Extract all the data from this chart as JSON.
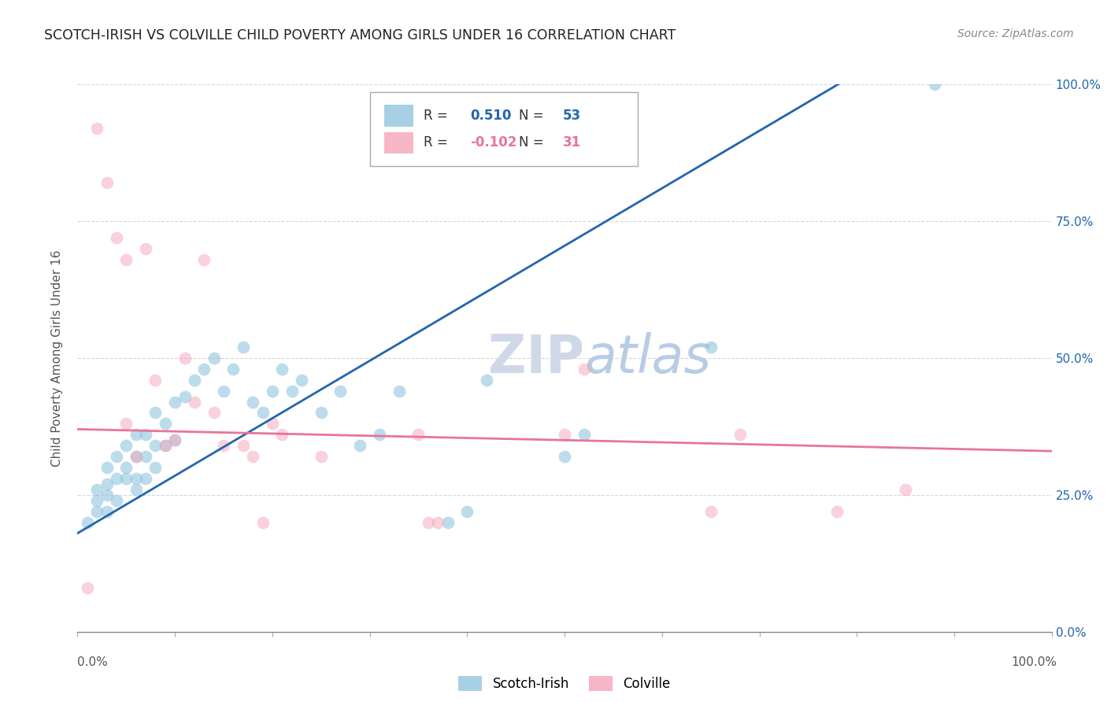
{
  "title": "SCOTCH-IRISH VS COLVILLE CHILD POVERTY AMONG GIRLS UNDER 16 CORRELATION CHART",
  "source": "Source: ZipAtlas.com",
  "ylabel": "Child Poverty Among Girls Under 16",
  "xlim": [
    0.0,
    1.0
  ],
  "ylim": [
    0.0,
    1.0
  ],
  "yticks": [
    0.0,
    0.25,
    0.5,
    0.75,
    1.0
  ],
  "yticklabels_left": [
    "",
    "",
    "",
    "",
    ""
  ],
  "yticklabels_right": [
    "0.0%",
    "25.0%",
    "50.0%",
    "75.0%",
    "100.0%"
  ],
  "blue_R": 0.51,
  "blue_N": 53,
  "pink_R": -0.102,
  "pink_N": 31,
  "blue_color": "#92c5de",
  "pink_color": "#f4a4b8",
  "blue_line_color": "#2166ac",
  "pink_line_color": "#e8749a",
  "background_color": "#ffffff",
  "grid_color": "#cccccc",
  "blue_x": [
    0.01,
    0.02,
    0.02,
    0.02,
    0.03,
    0.03,
    0.03,
    0.03,
    0.04,
    0.04,
    0.04,
    0.05,
    0.05,
    0.05,
    0.06,
    0.06,
    0.06,
    0.06,
    0.07,
    0.07,
    0.07,
    0.08,
    0.08,
    0.08,
    0.09,
    0.09,
    0.1,
    0.1,
    0.11,
    0.12,
    0.13,
    0.14,
    0.15,
    0.16,
    0.17,
    0.18,
    0.19,
    0.2,
    0.21,
    0.22,
    0.23,
    0.25,
    0.27,
    0.29,
    0.31,
    0.33,
    0.38,
    0.4,
    0.42,
    0.5,
    0.52,
    0.65,
    0.88
  ],
  "blue_y": [
    0.2,
    0.22,
    0.24,
    0.26,
    0.22,
    0.25,
    0.27,
    0.3,
    0.24,
    0.28,
    0.32,
    0.28,
    0.3,
    0.34,
    0.26,
    0.28,
    0.32,
    0.36,
    0.28,
    0.32,
    0.36,
    0.3,
    0.34,
    0.4,
    0.34,
    0.38,
    0.35,
    0.42,
    0.43,
    0.46,
    0.48,
    0.5,
    0.44,
    0.48,
    0.52,
    0.42,
    0.4,
    0.44,
    0.48,
    0.44,
    0.46,
    0.4,
    0.44,
    0.34,
    0.36,
    0.44,
    0.2,
    0.22,
    0.46,
    0.32,
    0.36,
    0.52,
    1.0
  ],
  "pink_x": [
    0.01,
    0.02,
    0.03,
    0.04,
    0.05,
    0.05,
    0.06,
    0.07,
    0.08,
    0.09,
    0.1,
    0.11,
    0.12,
    0.13,
    0.14,
    0.15,
    0.17,
    0.18,
    0.19,
    0.2,
    0.21,
    0.25,
    0.35,
    0.36,
    0.37,
    0.5,
    0.52,
    0.65,
    0.68,
    0.78,
    0.85
  ],
  "pink_y": [
    0.08,
    0.92,
    0.82,
    0.72,
    0.68,
    0.38,
    0.32,
    0.7,
    0.46,
    0.34,
    0.35,
    0.5,
    0.42,
    0.68,
    0.4,
    0.34,
    0.34,
    0.32,
    0.2,
    0.38,
    0.36,
    0.32,
    0.36,
    0.2,
    0.2,
    0.36,
    0.48,
    0.22,
    0.36,
    0.22,
    0.26
  ],
  "blue_line_slope": 1.05,
  "blue_line_intercept": 0.18,
  "pink_line_slope": -0.04,
  "pink_line_intercept": 0.37
}
